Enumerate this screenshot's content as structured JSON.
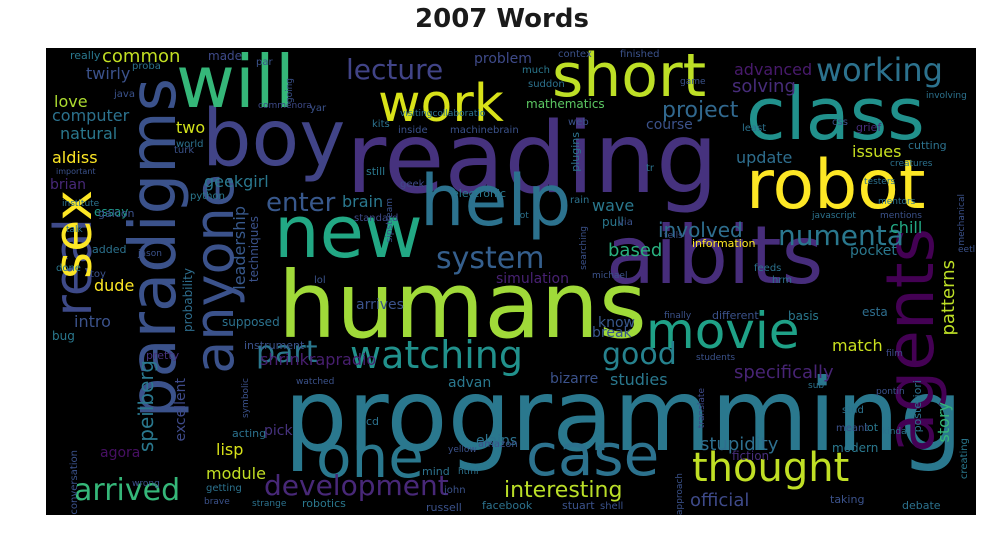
{
  "title": "2007 Words",
  "chart_data": {
    "type": "wordcloud",
    "title": "2007 Words",
    "words": [
      {
        "text": "programming",
        "weight": 100,
        "color": "#2a788e"
      },
      {
        "text": "reading",
        "weight": 95,
        "color": "#46327e"
      },
      {
        "text": "humans",
        "weight": 93,
        "color": "#a0da39"
      },
      {
        "text": "paradigms",
        "weight": 80,
        "color": "#3b528b"
      },
      {
        "text": "aibits",
        "weight": 78,
        "color": "#472d7b"
      },
      {
        "text": "new",
        "weight": 76,
        "color": "#22a884"
      },
      {
        "text": "boy",
        "weight": 74,
        "color": "#414487"
      },
      {
        "text": "will",
        "weight": 72,
        "color": "#35b779"
      },
      {
        "text": "class",
        "weight": 70,
        "color": "#21918c"
      },
      {
        "text": "agents",
        "weight": 70,
        "color": "#440154"
      },
      {
        "text": "help",
        "weight": 68,
        "color": "#2c728e"
      },
      {
        "text": "robot",
        "weight": 66,
        "color": "#fde725"
      },
      {
        "text": "short",
        "weight": 62,
        "color": "#bddf26"
      },
      {
        "text": "real",
        "weight": 60,
        "color": "#3e4a89"
      },
      {
        "text": "sex",
        "weight": 60,
        "color": "#fde725"
      },
      {
        "text": "anyone",
        "weight": 56,
        "color": "#3b528b"
      },
      {
        "text": "case",
        "weight": 56,
        "color": "#2c728e"
      },
      {
        "text": "one",
        "weight": 55,
        "color": "#2a788e"
      },
      {
        "text": "work",
        "weight": 52,
        "color": "#d8e219"
      },
      {
        "text": "movie",
        "weight": 50,
        "color": "#1fa187"
      },
      {
        "text": "thought",
        "weight": 46,
        "color": "#c0df25"
      },
      {
        "text": "watching",
        "weight": 42,
        "color": "#21918c"
      },
      {
        "text": "working",
        "weight": 36,
        "color": "#2c728e"
      },
      {
        "text": "arrived",
        "weight": 34,
        "color": "#35b779"
      },
      {
        "text": "development",
        "weight": 34,
        "color": "#482878"
      },
      {
        "text": "lecture",
        "weight": 34,
        "color": "#414487"
      },
      {
        "text": "system",
        "weight": 33,
        "color": "#355f8d"
      },
      {
        "text": "numenta",
        "weight": 32,
        "color": "#2a788e"
      },
      {
        "text": "part",
        "weight": 32,
        "color": "#2a788e"
      },
      {
        "text": "good",
        "weight": 31,
        "color": "#26828e"
      },
      {
        "text": "enter",
        "weight": 28,
        "color": "#38588c"
      },
      {
        "text": "interesting",
        "weight": 26,
        "color": "#bade28"
      },
      {
        "text": "project",
        "weight": 26,
        "color": "#31688e"
      },
      {
        "text": "speilberg",
        "weight": 24,
        "color": "#2a788e"
      },
      {
        "text": "leadership",
        "weight": 22,
        "color": "#38598c"
      },
      {
        "text": "specifically",
        "weight": 22,
        "color": "#482475"
      },
      {
        "text": "involved",
        "weight": 22,
        "color": "#2e6e8e"
      },
      {
        "text": "based",
        "weight": 22,
        "color": "#29af7f"
      },
      {
        "text": "stupidity",
        "weight": 20,
        "color": "#2e6f8e"
      },
      {
        "text": "patterns",
        "weight": 20,
        "color": "#bddf26"
      },
      {
        "text": "story",
        "weight": 20,
        "color": "#35b779"
      },
      {
        "text": "studies",
        "weight": 18,
        "color": "#2a788e"
      },
      {
        "text": "official",
        "weight": 18,
        "color": "#3e4a89"
      },
      {
        "text": "shrinkrapradio",
        "weight": 18,
        "color": "#481f70"
      },
      {
        "text": "advanced",
        "weight": 18,
        "color": "#481a6c"
      },
      {
        "text": "solving",
        "weight": 18,
        "color": "#472c7a"
      },
      {
        "text": "common",
        "weight": 18,
        "color": "#c2df23"
      },
      {
        "text": "twirly",
        "weight": 18,
        "color": "#3b528b"
      },
      {
        "text": "geekgirl",
        "weight": 18,
        "color": "#2a788e"
      },
      {
        "text": "two",
        "weight": 18,
        "color": "#d2e21b"
      },
      {
        "text": "love",
        "weight": 18,
        "color": "#addc30"
      },
      {
        "text": "computer",
        "weight": 17,
        "color": "#2c728e"
      },
      {
        "text": "natural",
        "weight": 17,
        "color": "#2a788e"
      },
      {
        "text": "aldiss",
        "weight": 17,
        "color": "#fde725"
      },
      {
        "text": "brian",
        "weight": 16,
        "color": "#482979"
      },
      {
        "text": "essay",
        "weight": 16,
        "color": "#1e9b8a"
      },
      {
        "text": "intro",
        "weight": 17,
        "color": "#3b528b"
      },
      {
        "text": "dude",
        "weight": 17,
        "color": "#fde725"
      },
      {
        "text": "lisp",
        "weight": 17,
        "color": "#d8e219"
      },
      {
        "text": "module",
        "weight": 17,
        "color": "#c2df23"
      },
      {
        "text": "update",
        "weight": 17,
        "color": "#2e6e8e"
      },
      {
        "text": "issues",
        "weight": 16,
        "color": "#c8e020"
      },
      {
        "text": "chill",
        "weight": 16,
        "color": "#22a884"
      },
      {
        "text": "match",
        "weight": 16,
        "color": "#cae11f"
      },
      {
        "text": "break",
        "weight": 16,
        "color": "#39568c"
      },
      {
        "text": "know",
        "weight": 15,
        "color": "#38588c"
      },
      {
        "text": "wave",
        "weight": 16,
        "color": "#2a788e"
      },
      {
        "text": "arrives",
        "weight": 16,
        "color": "#3b528b"
      },
      {
        "text": "simulation",
        "weight": 15,
        "color": "#482173"
      },
      {
        "text": "brain",
        "weight": 15,
        "color": "#2a788e"
      },
      {
        "text": "problem",
        "weight": 15,
        "color": "#3e4a89"
      },
      {
        "text": "mathematics",
        "weight": 13,
        "color": "#5cc863"
      },
      {
        "text": "pocket",
        "weight": 14,
        "color": "#2a788e"
      },
      {
        "text": "course",
        "weight": 13,
        "color": "#3b528b"
      },
      {
        "text": "pick",
        "weight": 14,
        "color": "#46327e"
      },
      {
        "text": "agora",
        "weight": 14,
        "color": "#471063"
      },
      {
        "text": "excellent",
        "weight": 13,
        "color": "#3e4a89"
      },
      {
        "text": "probability",
        "weight": 13,
        "color": "#2e6e8e"
      },
      {
        "text": "techniques",
        "weight": 13,
        "color": "#3b528b"
      },
      {
        "text": "supposed",
        "weight": 12,
        "color": "#2c728e"
      },
      {
        "text": "advan",
        "weight": 13,
        "color": "#2a788e"
      },
      {
        "text": "bizarre",
        "weight": 12,
        "color": "#3b528b"
      },
      {
        "text": "elains",
        "weight": 13,
        "color": "#2c728e"
      },
      {
        "text": "russell",
        "weight": 12,
        "color": "#3b528b"
      },
      {
        "text": "facebook",
        "weight": 11,
        "color": "#2c728e"
      },
      {
        "text": "stuart",
        "weight": 11,
        "color": "#3b528b"
      },
      {
        "text": "robotics",
        "weight": 11,
        "color": "#2a788e"
      },
      {
        "text": "made",
        "weight": 12,
        "color": "#3e4a89"
      },
      {
        "text": "java",
        "weight": 11,
        "color": "#3b528b"
      },
      {
        "text": "really",
        "weight": 10,
        "color": "#2a788e"
      },
      {
        "text": "debate",
        "weight": 11,
        "color": "#2c728e"
      },
      {
        "text": "fiction",
        "weight": 12,
        "color": "#472d7b"
      },
      {
        "text": "modern",
        "weight": 12,
        "color": "#2a788e"
      },
      {
        "text": "cutting",
        "weight": 11,
        "color": "#2c728e"
      },
      {
        "text": "basis",
        "weight": 11,
        "color": "#2a788e"
      },
      {
        "text": "esta",
        "weight": 12,
        "color": "#2e6e8e"
      },
      {
        "text": "different",
        "weight": 11,
        "color": "#3b528b"
      },
      {
        "text": "information",
        "weight": 11,
        "color": "#fde725"
      },
      {
        "text": "plugins",
        "weight": 11,
        "color": "#2c728e"
      },
      {
        "text": "standard",
        "weight": 10,
        "color": "#3e4a89"
      },
      {
        "text": "python",
        "weight": 10,
        "color": "#2a788e"
      },
      {
        "text": "galcon",
        "weight": 11,
        "color": "#3b528b"
      },
      {
        "text": "added",
        "weight": 11,
        "color": "#2c728e"
      },
      {
        "text": "bug",
        "weight": 12,
        "color": "#2a788e"
      },
      {
        "text": "acting",
        "weight": 11,
        "color": "#2c728e"
      },
      {
        "text": "pretty",
        "weight": 11,
        "color": "#46327e"
      },
      {
        "text": "instrument",
        "weight": 11,
        "color": "#3b528b"
      },
      {
        "text": "finished",
        "weight": 10,
        "color": "#3b528b"
      },
      {
        "text": "grief",
        "weight": 11,
        "color": "#472d7b"
      },
      {
        "text": "electronic",
        "weight": 11,
        "color": "#2a788e"
      },
      {
        "text": "inside",
        "weight": 10,
        "color": "#3b528b"
      },
      {
        "text": "machinebrain",
        "weight": 10,
        "color": "#3b528b"
      },
      {
        "text": "kits",
        "weight": 10,
        "color": "#2c728e"
      },
      {
        "text": "still",
        "weight": 11,
        "color": "#2a788e"
      },
      {
        "text": "geek",
        "weight": 10,
        "color": "#3e4a89"
      },
      {
        "text": "rain",
        "weight": 10,
        "color": "#2c728e"
      },
      {
        "text": "web",
        "weight": 10,
        "color": "#3b528b"
      },
      {
        "text": "pull",
        "weight": 12,
        "color": "#2a788e"
      },
      {
        "text": "commenora",
        "weight": 9,
        "color": "#3e4a89"
      },
      {
        "text": "turk",
        "weight": 10,
        "color": "#3b528b"
      },
      {
        "text": "world",
        "weight": 10,
        "color": "#2c728e"
      },
      {
        "text": "amazon",
        "weight": 10,
        "color": "#3b528b"
      },
      {
        "text": "lot",
        "weight": 11,
        "color": "#2a788e"
      },
      {
        "text": "mind",
        "weight": 11,
        "color": "#2c728e"
      },
      {
        "text": "john",
        "weight": 10,
        "color": "#3b528b"
      },
      {
        "text": "creating",
        "weight": 10,
        "color": "#2a788e"
      },
      {
        "text": "posteriori",
        "weight": 11,
        "color": "#2c728e"
      },
      {
        "text": "conversation",
        "weight": 10,
        "color": "#3b528b"
      },
      {
        "text": "getting",
        "weight": 10,
        "color": "#2c728e"
      },
      {
        "text": "taking",
        "weight": 11,
        "color": "#3b528b"
      },
      {
        "text": "film",
        "weight": 9,
        "color": "#3e4a89"
      },
      {
        "text": "stud",
        "weight": 10,
        "color": "#2c728e"
      },
      {
        "text": "toy",
        "weight": 10,
        "color": "#3b528b"
      },
      {
        "text": "done",
        "weight": 10,
        "color": "#2a788e"
      },
      {
        "text": "symbolic",
        "weight": 9,
        "color": "#3b528b"
      },
      {
        "text": "translate",
        "weight": 9,
        "color": "#3e4a89"
      },
      {
        "text": "feeds",
        "weight": 10,
        "color": "#2c728e"
      },
      {
        "text": "approach",
        "weight": 9,
        "color": "#3b528b"
      },
      {
        "text": "involving",
        "weight": 9,
        "color": "#2c728e"
      },
      {
        "text": "mechanical",
        "weight": 9,
        "color": "#3b528b"
      },
      {
        "text": "yar",
        "weight": 10,
        "color": "#3b528b"
      },
      {
        "text": "much",
        "weight": 10,
        "color": "#2a788e"
      },
      {
        "text": "suddon",
        "weight": 10,
        "color": "#2c728e"
      },
      {
        "text": "game",
        "weight": 9,
        "color": "#3b528b"
      },
      {
        "text": "least",
        "weight": 10,
        "color": "#2c728e"
      },
      {
        "text": "students",
        "weight": 9,
        "color": "#3b528b"
      },
      {
        "text": "javascript",
        "weight": 9,
        "color": "#2c728e"
      },
      {
        "text": "via",
        "weight": 10,
        "color": "#3b528b"
      },
      {
        "text": "testers",
        "weight": 9,
        "color": "#2c728e"
      },
      {
        "text": "mentions",
        "weight": 9,
        "color": "#3b528b"
      },
      {
        "text": "sub",
        "weight": 9,
        "color": "#2c728e"
      },
      {
        "text": "pontin",
        "weight": 9,
        "color": "#3b528b"
      },
      {
        "text": "meant",
        "weight": 10,
        "color": "#3b528b"
      },
      {
        "text": "kinda",
        "weight": 9,
        "color": "#2c728e"
      },
      {
        "text": "michael",
        "weight": 9,
        "color": "#3b528b"
      },
      {
        "text": "finally",
        "weight": 9,
        "color": "#3b528b"
      },
      {
        "text": "wrong",
        "weight": 9,
        "color": "#3b528b"
      },
      {
        "text": "brave",
        "weight": 9,
        "color": "#3b528b"
      },
      {
        "text": "strange",
        "weight": 9,
        "color": "#2c728e"
      },
      {
        "text": "shell",
        "weight": 10,
        "color": "#3b528b"
      },
      {
        "text": "yellow",
        "weight": 9,
        "color": "#3b528b"
      },
      {
        "text": "html",
        "weight": 9,
        "color": "#2c728e"
      },
      {
        "text": "watched",
        "weight": 9,
        "color": "#3b528b"
      },
      {
        "text": "hrm",
        "weight": 10,
        "color": "#2c728e"
      },
      {
        "text": "searching",
        "weight": 9,
        "color": "#3b528b"
      },
      {
        "text": "got",
        "weight": 9,
        "color": "#2c728e"
      },
      {
        "text": "contex",
        "weight": 10,
        "color": "#3b528b"
      },
      {
        "text": "par",
        "weight": 10,
        "color": "#3b528b"
      },
      {
        "text": "proba",
        "weight": 10,
        "color": "#2c728e"
      },
      {
        "text": "going",
        "weight": 9,
        "color": "#3b528b"
      },
      {
        "text": "creatures",
        "weight": 9,
        "color": "#2c728e"
      },
      {
        "text": "sipstream",
        "weight": 9,
        "color": "#3b528b"
      },
      {
        "text": "institute",
        "weight": 9,
        "color": "#2c728e"
      },
      {
        "text": "important",
        "weight": 8,
        "color": "#3b528b"
      },
      {
        "text": "talk",
        "weight": 9,
        "color": "#2c728e"
      },
      {
        "text": "jason",
        "weight": 9,
        "color": "#3b528b"
      },
      {
        "text": "tells",
        "weight": 9,
        "color": "#3b528b"
      },
      {
        "text": "mentors",
        "weight": 9,
        "color": "#2c728e"
      },
      {
        "text": "lol",
        "weight": 10,
        "color": "#3b528b"
      },
      {
        "text": "cd",
        "weight": 11,
        "color": "#2c728e"
      },
      {
        "text": "css",
        "weight": 10,
        "color": "#3b528b"
      },
      {
        "text": "tr",
        "weight": 10,
        "color": "#2c728e"
      },
      {
        "text": "eetl",
        "weight": 9,
        "color": "#3b528b"
      },
      {
        "text": "visitingcollaboratio",
        "weight": 9,
        "color": "#2c728e"
      }
    ]
  }
}
